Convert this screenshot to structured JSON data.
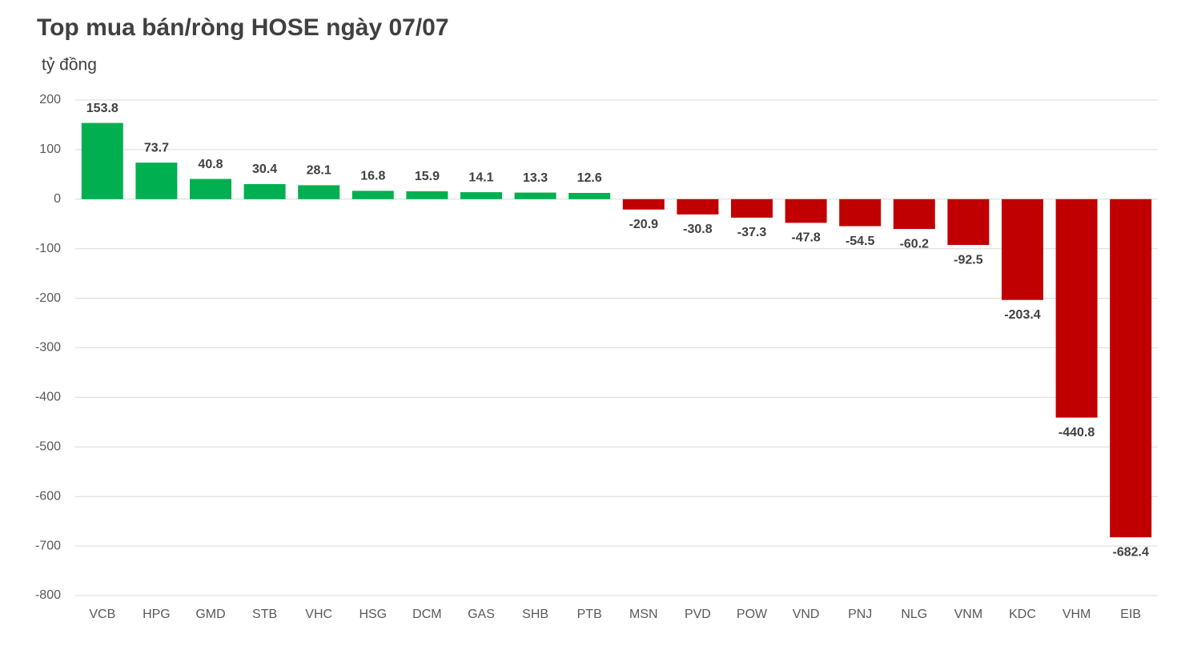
{
  "chart_data": {
    "type": "bar",
    "title": "Top mua bán/ròng HOSE ngày 07/07",
    "y_label": "tỷ đồng",
    "categories": [
      "VCB",
      "HPG",
      "GMD",
      "STB",
      "VHC",
      "HSG",
      "DCM",
      "GAS",
      "SHB",
      "PTB",
      "MSN",
      "PVD",
      "POW",
      "VND",
      "PNJ",
      "NLG",
      "VNM",
      "KDC",
      "VHM",
      "EIB"
    ],
    "values": [
      153.8,
      73.7,
      40.8,
      30.4,
      28.1,
      16.8,
      15.9,
      14.1,
      13.3,
      12.6,
      -20.9,
      -30.8,
      -37.3,
      -47.8,
      -54.5,
      -60.2,
      -92.5,
      -203.4,
      -440.8,
      -682.4
    ],
    "positive_color": "#00b050",
    "negative_color": "#c00000",
    "ylim": [
      -800,
      200
    ],
    "yticks": [
      200,
      100,
      0,
      -100,
      -200,
      -300,
      -400,
      -500,
      -600,
      -700,
      -800
    ],
    "grid": true
  }
}
